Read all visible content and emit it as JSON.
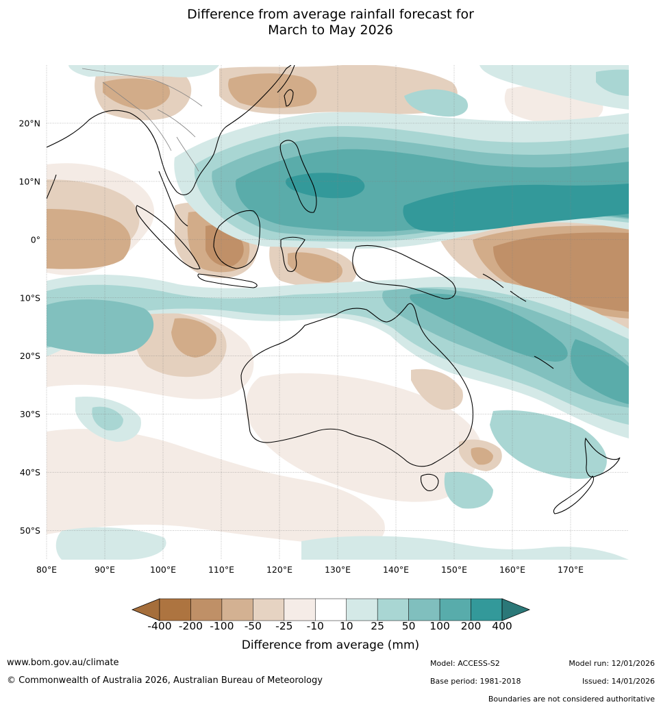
{
  "title": {
    "line1": "Difference from average rainfall forecast for",
    "line2": "March to May 2026"
  },
  "map": {
    "lon_ticks": [
      "80°E",
      "90°E",
      "100°E",
      "110°E",
      "120°E",
      "130°E",
      "140°E",
      "150°E",
      "160°E",
      "170°E"
    ],
    "lat_ticks": [
      "20°N",
      "10°N",
      "0°",
      "10°S",
      "20°S",
      "30°S",
      "40°S",
      "50°S"
    ],
    "lon_range": [
      80,
      180
    ],
    "lat_range": [
      -55,
      30
    ],
    "gridlines": true,
    "colors": {
      "dry_strong": "#c09068",
      "dry_medium": "#d2ac89",
      "dry_light": "#e4d0be",
      "dry_faint": "#f4ebe5",
      "wet_faint": "#d4e9e7",
      "wet_light": "#a9d6d3",
      "wet_medium": "#81c0be",
      "wet_strong": "#5aacaa",
      "wet_heavy": "#33999a",
      "coast": "#000000",
      "border": "#808080"
    }
  },
  "colorbar": {
    "ticks": [
      "-400",
      "-200",
      "-100",
      "-50",
      "-25",
      "-10",
      "10",
      "25",
      "50",
      "100",
      "200",
      "400"
    ],
    "colors": [
      "#a56e3b",
      "#ad7440",
      "#bf9067",
      "#d3b192",
      "#e6d3c2",
      "#f5ece7",
      "#ffffff",
      "#d4e9e7",
      "#a9d6d3",
      "#80bfbe",
      "#58acab",
      "#33999a",
      "#2b7878"
    ],
    "label": "Difference from average (mm)"
  },
  "footer": {
    "website": "www.bom.gov.au/climate",
    "copyright": "© Commonwealth of Australia 2026, Australian Bureau of Meteorology",
    "model": "Model: ACCESS-S2",
    "base_period": "Base period: 1981-2018",
    "model_run": "Model run: 12/01/2026",
    "issued": "Issued: 14/01/2026",
    "disclaimer": "Boundaries are not considered authoritative"
  }
}
